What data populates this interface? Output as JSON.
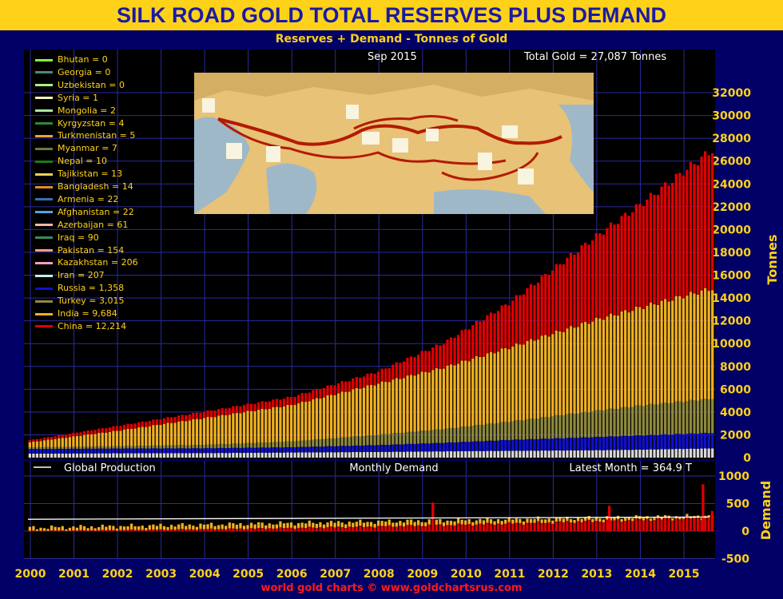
{
  "header": {
    "title": "SILK ROAD GOLD TOTAL RESERVES PLUS DEMAND",
    "subtitle": "Reserves + Demand - Tonnes of Gold",
    "date": "Sep  2015",
    "total": "Total Gold = 27,087 Tonnes",
    "footer": "world gold charts © www.goldchartsrus.com"
  },
  "colors": {
    "background": "#000066",
    "plot": "#000000",
    "grid": "#2a2aa0",
    "title_bar": "#ffd21a",
    "title_text": "#1a1aa6",
    "axis_text": "#ffd21a",
    "china": "#e10000",
    "india": "#f0b020",
    "turkey": "#8f8a3c",
    "russia": "#1010d0"
  },
  "legend": [
    {
      "label": "Bhutan = 0",
      "color": "#7cfc3c"
    },
    {
      "label": "Georgia = 0",
      "color": "#4a8a7a"
    },
    {
      "label": "Uzbekistan = 0",
      "color": "#a8f08c"
    },
    {
      "label": "Syria = 1",
      "color": "#f5f0b0"
    },
    {
      "label": "Mongolia = 2",
      "color": "#a8e8a0"
    },
    {
      "label": "Kyrgyzstan = 4",
      "color": "#2e8b2e"
    },
    {
      "label": "Turkmenistan = 5",
      "color": "#f0a040"
    },
    {
      "label": "Myanmar = 7",
      "color": "#6b7a3a"
    },
    {
      "label": "Nepal = 10",
      "color": "#1a7a1a"
    },
    {
      "label": "Tajikistan = 13",
      "color": "#f0d050"
    },
    {
      "label": "Bangladesh = 14",
      "color": "#e09020"
    },
    {
      "label": "Armenia = 22",
      "color": "#3a70b0"
    },
    {
      "label": "Afghanistan = 22",
      "color": "#5aa0e0"
    },
    {
      "label": "Azerbaijan = 61",
      "color": "#f0b8a0"
    },
    {
      "label": "Iraq = 90",
      "color": "#3a8a5a"
    },
    {
      "label": "Pakistan = 154",
      "color": "#f0a080"
    },
    {
      "label": "Kazakhstan = 206",
      "color": "#f0a0c0"
    },
    {
      "label": "Iran = 207",
      "color": "#c0f0f0"
    },
    {
      "label": "Russia = 1,358",
      "color": "#1010d0"
    },
    {
      "label": "Turkey = 3,015",
      "color": "#8f8a3c"
    },
    {
      "label": "India = 9,684",
      "color": "#f0b020"
    },
    {
      "label": "China = 12,214",
      "color": "#e10000"
    }
  ],
  "chart_data": [
    {
      "type": "bar",
      "stacked": true,
      "title": "SILK ROAD GOLD TOTAL RESERVES PLUS DEMAND",
      "subtitle": "Reserves + Demand - Tonnes of Gold",
      "ylabel": "Tonnes",
      "ylim": [
        0,
        32000
      ],
      "yticks": [
        0,
        2000,
        4000,
        6000,
        8000,
        10000,
        12000,
        14000,
        16000,
        18000,
        20000,
        22000,
        24000,
        26000,
        28000,
        30000,
        32000
      ],
      "x_start": "2000-01",
      "x_end": "2015-09",
      "xticks": [
        "2000",
        "2001",
        "2002",
        "2003",
        "2004",
        "2005",
        "2006",
        "2007",
        "2008",
        "2009",
        "2010",
        "2011",
        "2012",
        "2013",
        "2014",
        "2015"
      ],
      "series_keyframes": {
        "years": [
          2000,
          2002,
          2004,
          2006,
          2008,
          2009.5,
          2011,
          2013,
          2014,
          2015.7
        ],
        "Russia": [
          400,
          420,
          420,
          460,
          600,
          750,
          950,
          1150,
          1250,
          1358
        ],
        "Turkey": [
          150,
          200,
          300,
          500,
          900,
          1200,
          1600,
          2300,
          2600,
          3015
        ],
        "India": [
          450,
          1350,
          2350,
          3200,
          4500,
          5400,
          6500,
          8000,
          8600,
          9684
        ],
        "China": [
          180,
          420,
          560,
          700,
          1050,
          2150,
          3900,
          7300,
          9000,
          12214
        ],
        "Others": [
          350,
          380,
          400,
          450,
          500,
          550,
          600,
          650,
          700,
          816
        ]
      },
      "grid": true,
      "legend_position": "top-left"
    },
    {
      "type": "bar",
      "title": "Monthly Demand",
      "ylabel": "Demand",
      "ylim": [
        -500,
        1000
      ],
      "yticks": [
        -500,
        0,
        500,
        1000
      ],
      "series": [
        {
          "name": "Global Production",
          "type": "line",
          "values_start": 215,
          "values_end": 255
        }
      ],
      "latest_month": "Latest Month = 364.9 T",
      "latest_value": 364.9,
      "peak_value": 850
    }
  ],
  "lower": {
    "legend_label": "Global Production",
    "title": "Monthly Demand",
    "latest": "Latest Month = 364.9 T"
  },
  "axes": {
    "upper_label": "Tonnes",
    "lower_label": "Demand"
  }
}
